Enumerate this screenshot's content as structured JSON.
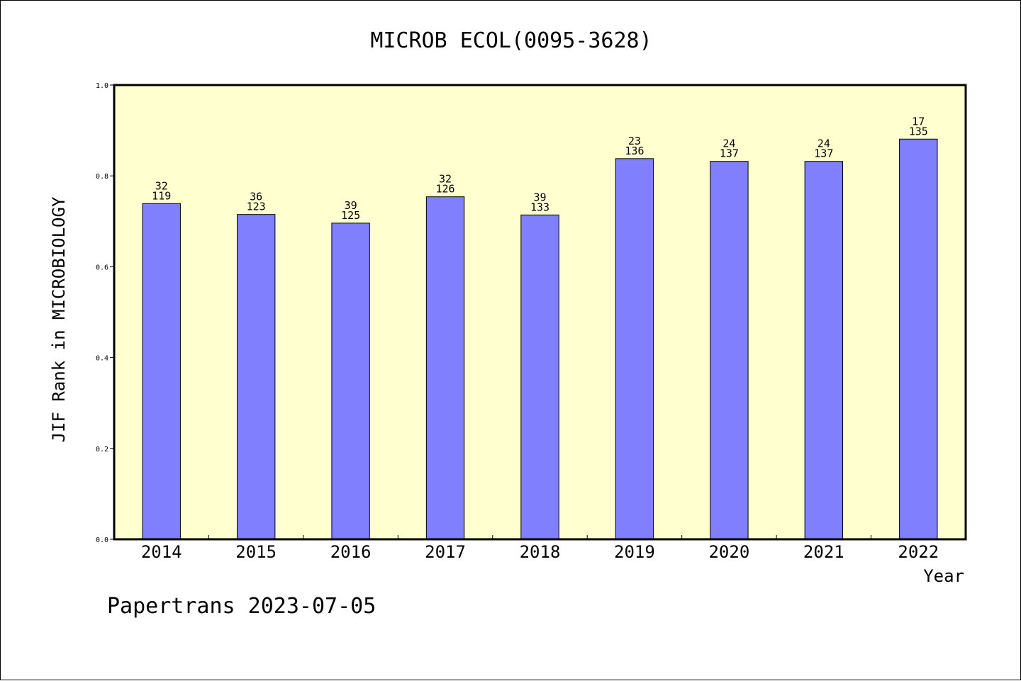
{
  "chart_data": {
    "type": "bar",
    "title": "MICROB ECOL(0095-3628)",
    "xlabel": "Year",
    "ylabel": "JIF Rank in MICROBIOLOGY",
    "categories": [
      "2014",
      "2015",
      "2016",
      "2017",
      "2018",
      "2019",
      "2020",
      "2021",
      "2022"
    ],
    "values": [
      0.739,
      0.715,
      0.696,
      0.754,
      0.714,
      0.838,
      0.832,
      0.832,
      0.881
    ],
    "rank": [
      "32",
      "36",
      "39",
      "32",
      "39",
      "23",
      "24",
      "24",
      "17"
    ],
    "total": [
      "119",
      "123",
      "125",
      "126",
      "133",
      "136",
      "137",
      "137",
      "135"
    ],
    "ylim": [
      0.0,
      1.0
    ],
    "yticks": [
      "0.0",
      "0.2",
      "0.4",
      "0.6",
      "0.8",
      "1.0"
    ],
    "grid": false,
    "plot_background": "#ffffd0",
    "bar_color": "#8080ff"
  },
  "footer": {
    "text": "Papertrans 2023-07-05"
  }
}
